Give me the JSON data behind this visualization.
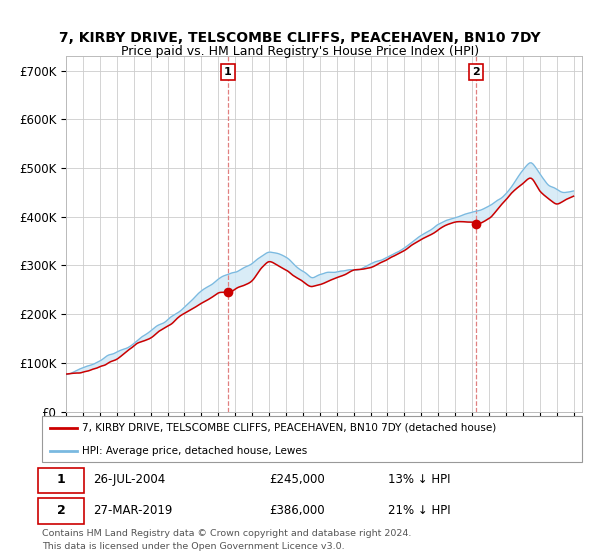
{
  "title": "7, KIRBY DRIVE, TELSCOMBE CLIFFS, PEACEHAVEN, BN10 7DY",
  "subtitle": "Price paid vs. HM Land Registry's House Price Index (HPI)",
  "ylabel_ticks": [
    "£0",
    "£100K",
    "£200K",
    "£300K",
    "£400K",
    "£500K",
    "£600K",
    "£700K"
  ],
  "ytick_vals": [
    0,
    100000,
    200000,
    300000,
    400000,
    500000,
    600000,
    700000
  ],
  "ylim": [
    0,
    730000
  ],
  "xlim_start": 1995.0,
  "xlim_end": 2025.5,
  "hpi_color": "#7ab9e0",
  "hpi_fill_color": "#d0e8f5",
  "price_color": "#cc0000",
  "dashed_color": "#e08080",
  "marker1_x": 2004.57,
  "marker1_y": 245000,
  "marker2_x": 2019.24,
  "marker2_y": 386000,
  "marker1_label": "1",
  "marker2_label": "2",
  "legend_line1": "7, KIRBY DRIVE, TELSCOMBE CLIFFS, PEACEHAVEN, BN10 7DY (detached house)",
  "legend_line2": "HPI: Average price, detached house, Lewes",
  "footer1": "Contains HM Land Registry data © Crown copyright and database right 2024.",
  "footer2": "This data is licensed under the Open Government Licence v3.0.",
  "background_color": "#ffffff",
  "grid_color": "#cccccc",
  "title_fontsize": 10,
  "subtitle_fontsize": 9
}
